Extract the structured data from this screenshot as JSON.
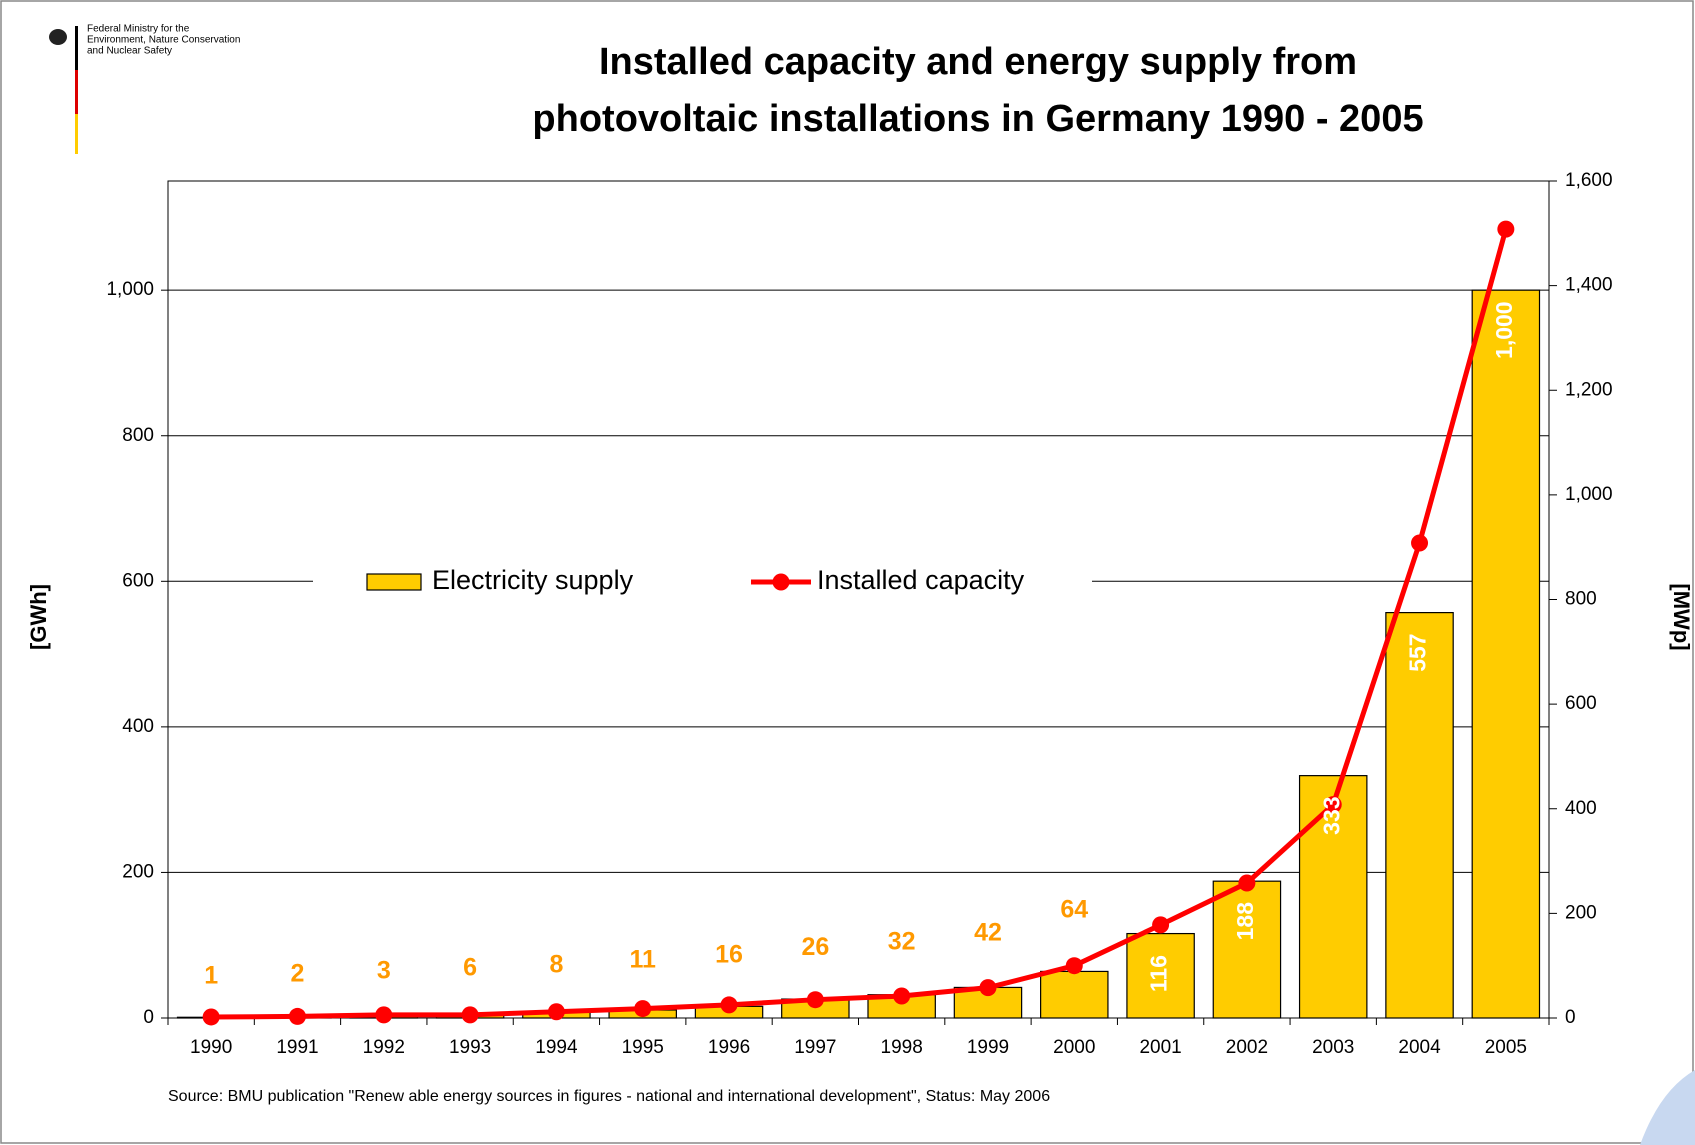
{
  "logo_text": [
    "Federal Ministry for the",
    "Environment, Nature Conservation",
    "and Nuclear Safety"
  ],
  "source": "Source: BMU publication \"Renew able energy sources in figures - national and international development\", Status: May 2006",
  "chart_data": {
    "type": "bar",
    "title": [
      "Installed capacity and energy supply from",
      "photovoltaic installations in Germany 1990 - 2005"
    ],
    "y_label": "[GWh]",
    "y2_label": "[MWp]",
    "categories": [
      "1990",
      "1991",
      "1992",
      "1993",
      "1994",
      "1995",
      "1996",
      "1997",
      "1998",
      "1999",
      "2000",
      "2001",
      "2002",
      "2003",
      "2004",
      "2005"
    ],
    "series": [
      {
        "name": "Electricity supply",
        "color": "#ffcc00",
        "axis": "y",
        "values": [
          1,
          2,
          3,
          6,
          8,
          11,
          16,
          26,
          32,
          42,
          64,
          116,
          188,
          333,
          557,
          1000
        ],
        "value_labels": [
          "1",
          "2",
          "3",
          "6",
          "8",
          "11",
          "16",
          "26",
          "32",
          "42",
          "64",
          "116",
          "188",
          "333",
          "557",
          "1,000"
        ]
      },
      {
        "name": "Installed capacity",
        "color": "#ff0000",
        "axis": "y2",
        "type": "line",
        "values": [
          2,
          3,
          6,
          6,
          12,
          18,
          25,
          35,
          42,
          58,
          100,
          178,
          258,
          408,
          908,
          1508
        ]
      }
    ],
    "ylim": [
      0,
      1150
    ],
    "yticks": [
      0,
      200,
      400,
      600,
      800,
      {
        "value": 1000,
        "label": "1,000"
      }
    ],
    "y2lim": [
      0,
      1600
    ],
    "y2ticks": [
      0,
      200,
      400,
      600,
      800,
      {
        "value": 1000,
        "label": "1,000"
      },
      {
        "value": 1200,
        "label": "1,200"
      },
      {
        "value": 1400,
        "label": "1,400"
      },
      {
        "value": 1600,
        "label": "1,600"
      }
    ],
    "grid": true,
    "legend": "center"
  }
}
